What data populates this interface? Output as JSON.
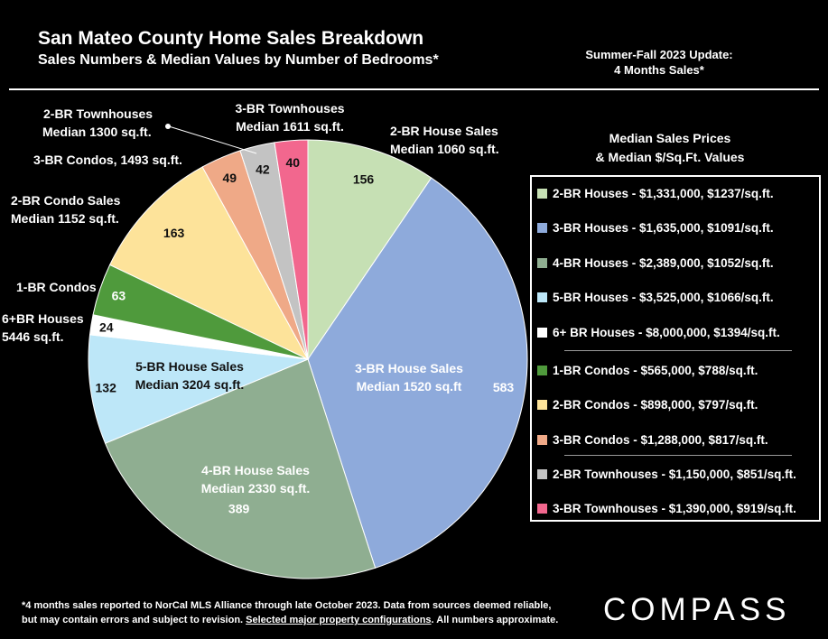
{
  "header": {
    "title": "San Mateo County Home Sales Breakdown",
    "subtitle": "Sales Numbers & Median Values by Number of Bedrooms*",
    "update_line1": "Summer-Fall 2023 Update:",
    "update_line2": "4 Months Sales*"
  },
  "legend": {
    "title_line1": "Median Sales Prices",
    "title_line2": "& Median $/Sq.Ft. Values"
  },
  "chart_data": {
    "type": "pie",
    "start": "12 o'clock, clockwise",
    "slices": [
      {
        "value": 156,
        "color": "#c6e0b4",
        "text_color": "#111111",
        "callout": [
          "2-BR House Sales",
          "Median 1060 sq.ft."
        ],
        "legend": "2-BR Houses - $1,331,000, $1237/sq.ft."
      },
      {
        "value": 583,
        "color": "#8eaadb",
        "text_color": "#ffffff",
        "callout": [
          "3-BR House Sales",
          "Median 1520 sq.ft"
        ],
        "legend": "3-BR Houses - $1,635,000, $1091/sq.ft."
      },
      {
        "value": 389,
        "color": "#8fae91",
        "text_color": "#ffffff",
        "callout": [
          "4-BR House Sales",
          "Median 2330 sq.ft."
        ],
        "legend": "4-BR Houses - $2,389,000, $1052/sq.ft."
      },
      {
        "value": 132,
        "color": "#bde7f8",
        "text_color": "#111111",
        "callout": [
          "5-BR House Sales",
          "Median 3204 sq.ft."
        ],
        "legend": "5-BR Houses - $3,525,000, $1066/sq.ft."
      },
      {
        "value": 24,
        "color": "#ffffff",
        "text_color": "#111111",
        "callout": [
          "6+BR Houses",
          "5446 sq.ft."
        ],
        "legend": "6+ BR Houses - $8,000,000, $1394/sq.ft."
      },
      {
        "value": 63,
        "color": "#4f9a3c",
        "text_color": "#ffffff",
        "callout": [
          "1-BR Condos"
        ],
        "legend": "1-BR Condos - $565,000, $788/sq.ft."
      },
      {
        "value": 163,
        "color": "#fde39a",
        "text_color": "#111111",
        "callout": [
          "2-BR Condo Sales",
          "Median 1152 sq.ft."
        ],
        "legend": "2-BR Condos - $898,000, $797/sq.ft."
      },
      {
        "value": 49,
        "color": "#efa987",
        "text_color": "#111111",
        "callout": [
          "3-BR Condos, 1493 sq.ft."
        ],
        "legend": "3-BR Condos - $1,288,000, $817/sq.ft."
      },
      {
        "value": 42,
        "color": "#c3c3c3",
        "text_color": "#111111",
        "callout": [
          "2-BR Townhouses",
          "Median 1300 sq.ft."
        ],
        "legend": "2-BR Townhouses - $1,150,000, $851/sq.ft."
      },
      {
        "value": 40,
        "color": "#f2678e",
        "text_color": "#111111",
        "callout": [
          "3-BR Townhouses",
          "Median 1611 sq.ft."
        ],
        "legend": "3-BR Townhouses - $1,390,000, $919/sq.ft."
      }
    ],
    "legend_groups": [
      [
        0,
        1,
        2,
        3,
        4
      ],
      [
        5,
        6,
        7
      ],
      [
        8,
        9
      ]
    ]
  },
  "footnote": {
    "line1": "*4 months sales reported to NorCal MLS Alliance through late October 2023. Data from sources deemed reliable,",
    "line2_pre": "but may contain errors and subject to revision. ",
    "line2_link": "Selected major property configurations",
    "line2_post": ". All numbers approximate."
  },
  "brand": {
    "logo": "COMPASS"
  }
}
